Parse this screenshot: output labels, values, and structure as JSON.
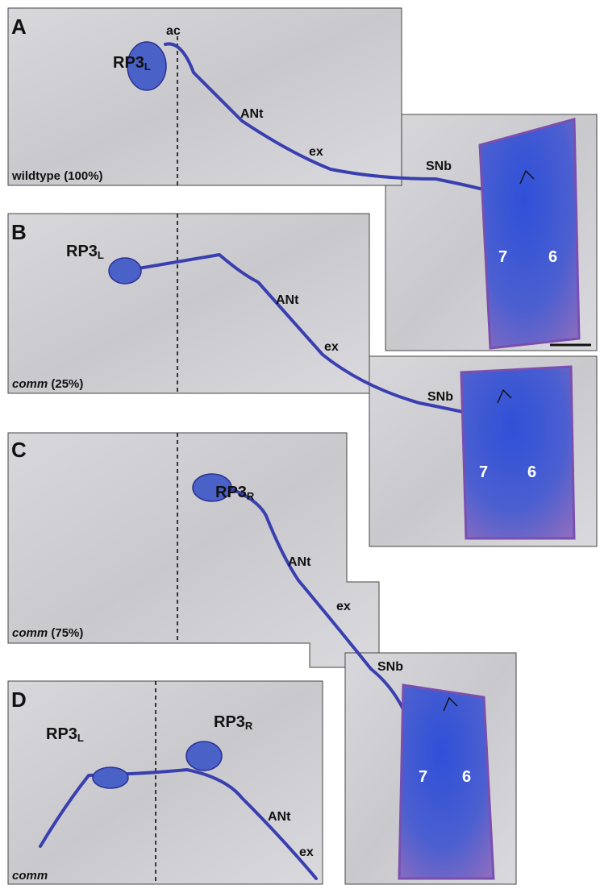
{
  "panels": [
    {
      "label": "A",
      "genotype": "wildtype",
      "frequency": "(100%)",
      "cells": [
        {
          "name": "RP3",
          "side": "L"
        }
      ],
      "nerves": [
        "ac",
        "ANt",
        "ex",
        "SNb"
      ],
      "muscles": [
        "7",
        "6"
      ]
    },
    {
      "label": "B",
      "genotype": "comm",
      "frequency": "(25%)",
      "cells": [
        {
          "name": "RP3",
          "side": "L"
        }
      ],
      "nerves": [
        "ANt",
        "ex",
        "SNb"
      ],
      "muscles": [
        "7",
        "6"
      ]
    },
    {
      "label": "C",
      "genotype": "comm",
      "frequency": "(75%)",
      "cells": [
        {
          "name": "RP3",
          "side": "R"
        }
      ],
      "nerves": [
        "ANt",
        "ex",
        "SNb"
      ],
      "muscles": [
        "7",
        "6"
      ]
    },
    {
      "label": "D",
      "genotype": "comm",
      "cells": [
        {
          "name": "RP3",
          "side": "L"
        },
        {
          "name": "RP3",
          "side": "R"
        }
      ],
      "nerves": [
        "ANt",
        "ex"
      ]
    }
  ]
}
